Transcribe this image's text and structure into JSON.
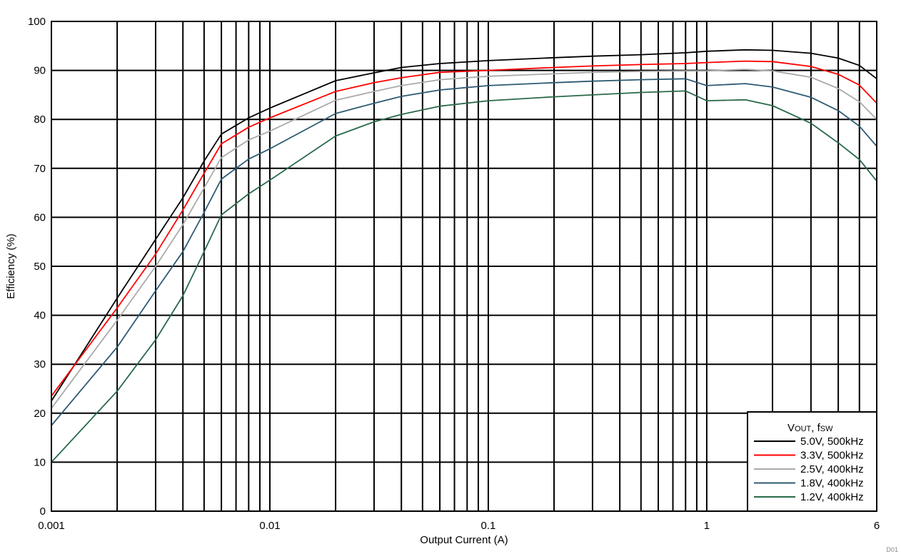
{
  "chart_data": {
    "type": "line",
    "title": "",
    "xlabel": "Output Current (A)",
    "ylabel": "Efficiency (%)",
    "xscale": "log",
    "xlim": [
      0.001,
      6
    ],
    "ylim": [
      0,
      100
    ],
    "grid": true,
    "x_tick_labels": [
      "0.001",
      "0.01",
      "0.1",
      "1",
      "6"
    ],
    "x_ticks": [
      0.001,
      0.01,
      0.1,
      1,
      6
    ],
    "y_ticks": [
      0,
      10,
      20,
      30,
      40,
      50,
      60,
      70,
      80,
      90,
      100
    ],
    "y_tick_labels": [
      "0",
      "10",
      "20",
      "30",
      "40",
      "50",
      "60",
      "70",
      "80",
      "90",
      "100"
    ],
    "legend": {
      "title_main": "V",
      "title_sub1": "OUT",
      "title_mid": ", f",
      "title_sub2": "SW",
      "position": "lower-right"
    },
    "corner_mark": "D01",
    "series": [
      {
        "name": "5.0V, 500kHz",
        "color": "#000000",
        "x": [
          0.001,
          0.002,
          0.003,
          0.004,
          0.005,
          0.006,
          0.008,
          0.01,
          0.02,
          0.03,
          0.04,
          0.06,
          0.1,
          0.2,
          0.3,
          0.5,
          0.8,
          1.0,
          1.5,
          2.0,
          3.0,
          4.0,
          5.0,
          6.0
        ],
        "y": [
          22.5,
          43.5,
          55.5,
          64.0,
          71.5,
          77.0,
          80.3,
          82.3,
          87.9,
          89.5,
          90.6,
          91.4,
          92.0,
          92.6,
          92.9,
          93.2,
          93.6,
          93.9,
          94.2,
          94.1,
          93.5,
          92.5,
          91.0,
          88.3
        ]
      },
      {
        "name": "3.3V, 500kHz",
        "color": "#ff0000",
        "x": [
          0.001,
          0.002,
          0.003,
          0.004,
          0.005,
          0.006,
          0.008,
          0.01,
          0.02,
          0.03,
          0.04,
          0.06,
          0.1,
          0.2,
          0.3,
          0.5,
          0.8,
          1.0,
          1.5,
          2.0,
          3.0,
          4.0,
          5.0,
          6.0
        ],
        "y": [
          23.5,
          41.5,
          52.5,
          61.5,
          69.0,
          75.0,
          78.4,
          80.3,
          85.7,
          87.5,
          88.5,
          89.6,
          90.0,
          90.6,
          90.9,
          91.2,
          91.4,
          91.6,
          91.9,
          91.8,
          90.8,
          89.2,
          87.0,
          83.3
        ]
      },
      {
        "name": "2.5V, 400kHz",
        "color": "#aaaaaa",
        "x": [
          0.001,
          0.002,
          0.003,
          0.004,
          0.005,
          0.006,
          0.008,
          0.01,
          0.02,
          0.03,
          0.04,
          0.06,
          0.1,
          0.2,
          0.3,
          0.5,
          0.8,
          1.0,
          1.5,
          2.0,
          3.0,
          4.0,
          5.0,
          6.0
        ],
        "y": [
          21.0,
          39.0,
          50.0,
          58.5,
          66.0,
          72.2,
          75.8,
          77.6,
          83.9,
          85.7,
          86.9,
          88.1,
          88.8,
          89.3,
          89.6,
          89.8,
          89.9,
          89.9,
          90.2,
          89.9,
          88.6,
          86.3,
          83.6,
          80.0
        ]
      },
      {
        "name": "1.8V, 400kHz",
        "color": "#2e5a73",
        "x": [
          0.001,
          0.002,
          0.003,
          0.004,
          0.005,
          0.006,
          0.008,
          0.01,
          0.02,
          0.03,
          0.04,
          0.06,
          0.1,
          0.2,
          0.3,
          0.5,
          0.8,
          1.0,
          1.5,
          2.0,
          3.0,
          4.0,
          5.0,
          6.0
        ],
        "y": [
          17.5,
          33.5,
          45.0,
          53.0,
          61.0,
          67.8,
          71.9,
          74.0,
          81.2,
          83.3,
          84.7,
          86.0,
          86.9,
          87.5,
          87.8,
          88.1,
          88.3,
          86.9,
          87.3,
          86.6,
          84.5,
          81.8,
          78.6,
          74.5
        ]
      },
      {
        "name": "1.2V, 400kHz",
        "color": "#2a6a4a",
        "x": [
          0.001,
          0.002,
          0.003,
          0.004,
          0.005,
          0.006,
          0.008,
          0.01,
          0.02,
          0.03,
          0.04,
          0.06,
          0.1,
          0.2,
          0.3,
          0.5,
          0.8,
          1.0,
          1.5,
          2.0,
          3.0,
          4.0,
          5.0,
          6.0
        ],
        "y": [
          10.0,
          24.5,
          35.0,
          44.0,
          53.0,
          60.5,
          64.8,
          67.6,
          76.6,
          79.5,
          81.0,
          82.7,
          83.8,
          84.6,
          85.0,
          85.5,
          85.8,
          83.8,
          84.0,
          82.8,
          79.2,
          75.2,
          71.8,
          67.4
        ]
      }
    ]
  }
}
